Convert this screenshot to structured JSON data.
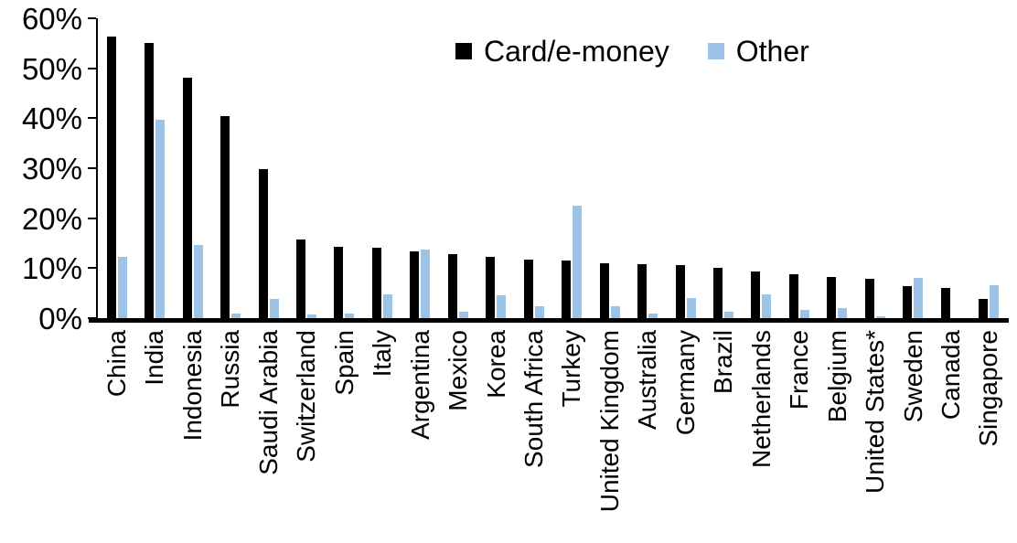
{
  "chart_data": {
    "type": "bar",
    "title": "",
    "xlabel": "",
    "ylabel": "",
    "categories": [
      "China",
      "India",
      "Indonesia",
      "Russia",
      "Saudi Arabia",
      "Switzerland",
      "Spain",
      "Italy",
      "Argentina",
      "Mexico",
      "Korea",
      "South Africa",
      "Turkey",
      "United Kingdom",
      "Australia",
      "Germany",
      "Brazil",
      "Netherlands",
      "France",
      "Belgium",
      "United States*",
      "Sweden",
      "Canada",
      "Singapore"
    ],
    "series": [
      {
        "name": "Card/e-money",
        "color": "#000000",
        "values": [
          56.3,
          55.0,
          48.2,
          40.5,
          29.9,
          15.7,
          14.2,
          14.1,
          13.3,
          12.8,
          12.2,
          11.7,
          11.5,
          11.0,
          10.8,
          10.6,
          10.0,
          9.3,
          8.7,
          8.2,
          7.9,
          6.5,
          6.0,
          3.9
        ]
      },
      {
        "name": "Other",
        "color": "#9DC3E6",
        "values": [
          12.3,
          39.7,
          14.6,
          1.0,
          3.9,
          0.8,
          1.0,
          4.7,
          13.8,
          1.2,
          4.6,
          2.3,
          22.5,
          2.3,
          1.0,
          4.0,
          1.2,
          4.8,
          1.6,
          2.0,
          0.3,
          8.0,
          0.0,
          6.6
        ]
      }
    ],
    "y_axis": {
      "unit": "%",
      "min": 0,
      "max": 60,
      "tick_step": 10,
      "tick_labels": [
        "60%",
        "50%",
        "40%",
        "30%",
        "20%",
        "10%",
        "0%"
      ]
    },
    "legend": {
      "position": "top-center",
      "items": [
        "Card/e-money",
        "Other"
      ]
    },
    "grid": "off",
    "axis_color": "#000000",
    "background_color": "#FFFFFF"
  }
}
